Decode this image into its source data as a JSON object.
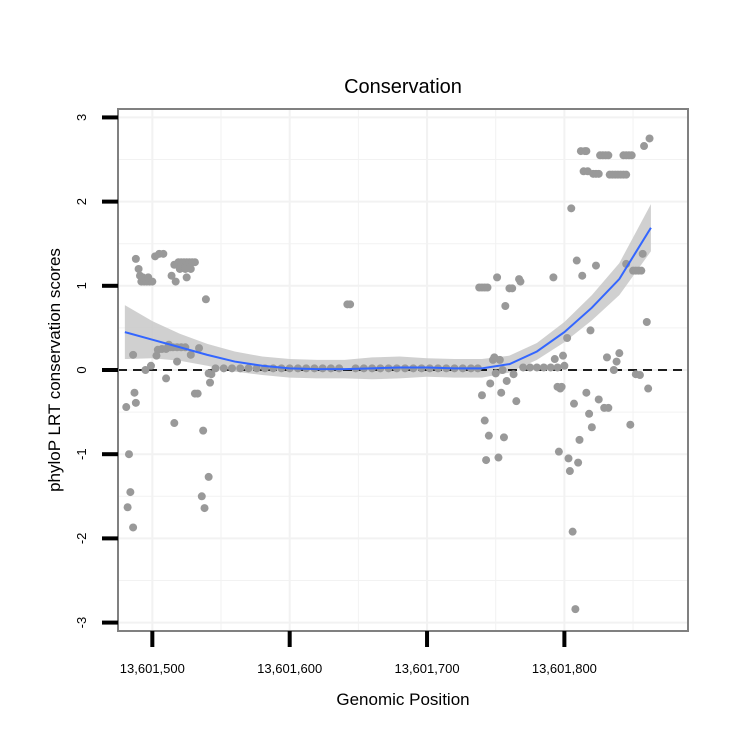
{
  "chart_data": {
    "type": "scatter",
    "title": "Conservation",
    "xlabel": "Genomic Position",
    "ylabel": "phyloP LRT conservation scores",
    "xlim": [
      13601475,
      13601890
    ],
    "ylim": [
      -3.1,
      3.1
    ],
    "x_ticks": [
      13601500,
      13601600,
      13601700,
      13601800
    ],
    "x_tick_labels": [
      "13,601,500",
      "13,601,600",
      "13,601,700",
      "13,601,800"
    ],
    "y_ticks": [
      3,
      2,
      1,
      0,
      -1,
      -2,
      -3
    ],
    "y_tick_labels": [
      "3",
      "2",
      "1",
      "0",
      "-1",
      "-2",
      "-3"
    ],
    "reference_line": {
      "y": 0,
      "style": "dashed"
    },
    "grid": true,
    "colors": {
      "points": "#999999",
      "smooth": "#3366ff",
      "ribbon": "#c8c8c8",
      "frame": "#808080"
    },
    "points": [
      {
        "x": 13601481,
        "y": -0.44
      },
      {
        "x": 13601483,
        "y": -1.0
      },
      {
        "x": 13601482,
        "y": -1.63
      },
      {
        "x": 13601484,
        "y": -1.45
      },
      {
        "x": 13601486,
        "y": -1.87
      },
      {
        "x": 13601487,
        "y": -0.27
      },
      {
        "x": 13601488,
        "y": -0.39
      },
      {
        "x": 13601486,
        "y": 0.18
      },
      {
        "x": 13601488,
        "y": 1.32
      },
      {
        "x": 13601490,
        "y": 1.2
      },
      {
        "x": 13601491,
        "y": 1.12
      },
      {
        "x": 13601492,
        "y": 1.05
      },
      {
        "x": 13601494,
        "y": 1.05
      },
      {
        "x": 13601496,
        "y": 1.05
      },
      {
        "x": 13601498,
        "y": 1.05
      },
      {
        "x": 13601500,
        "y": 1.05
      },
      {
        "x": 13601493,
        "y": 1.1
      },
      {
        "x": 13601497,
        "y": 1.1
      },
      {
        "x": 13601495,
        "y": 0.0
      },
      {
        "x": 13601499,
        "y": 0.05
      },
      {
        "x": 13601503,
        "y": 0.17
      },
      {
        "x": 13601502,
        "y": 1.35
      },
      {
        "x": 13601505,
        "y": 1.38
      },
      {
        "x": 13601508,
        "y": 1.38
      },
      {
        "x": 13601504,
        "y": 0.24
      },
      {
        "x": 13601507,
        "y": 0.25
      },
      {
        "x": 13601510,
        "y": 0.25
      },
      {
        "x": 13601510,
        "y": -0.1
      },
      {
        "x": 13601512,
        "y": 0.3
      },
      {
        "x": 13601513,
        "y": 0.27
      },
      {
        "x": 13601515,
        "y": 0.27
      },
      {
        "x": 13601514,
        "y": 1.12
      },
      {
        "x": 13601517,
        "y": 1.05
      },
      {
        "x": 13601516,
        "y": 1.25
      },
      {
        "x": 13601519,
        "y": 1.28
      },
      {
        "x": 13601521,
        "y": 1.28
      },
      {
        "x": 13601523,
        "y": 1.28
      },
      {
        "x": 13601525,
        "y": 1.28
      },
      {
        "x": 13601527,
        "y": 1.28
      },
      {
        "x": 13601529,
        "y": 1.28
      },
      {
        "x": 13601531,
        "y": 1.28
      },
      {
        "x": 13601520,
        "y": 1.2
      },
      {
        "x": 13601524,
        "y": 1.2
      },
      {
        "x": 13601528,
        "y": 1.2
      },
      {
        "x": 13601525,
        "y": 1.1
      },
      {
        "x": 13601518,
        "y": 0.27
      },
      {
        "x": 13601521,
        "y": 0.27
      },
      {
        "x": 13601524,
        "y": 0.27
      },
      {
        "x": 13601516,
        "y": -0.63
      },
      {
        "x": 13601518,
        "y": 0.1
      },
      {
        "x": 13601528,
        "y": 0.18
      },
      {
        "x": 13601531,
        "y": -0.28
      },
      {
        "x": 13601533,
        "y": -0.28
      },
      {
        "x": 13601534,
        "y": 0.26
      },
      {
        "x": 13601536,
        "y": -1.5
      },
      {
        "x": 13601537,
        "y": -0.72
      },
      {
        "x": 13601538,
        "y": -1.64
      },
      {
        "x": 13601539,
        "y": 0.84
      },
      {
        "x": 13601541,
        "y": -1.27
      },
      {
        "x": 13601542,
        "y": -0.15
      },
      {
        "x": 13601543,
        "y": -0.05
      },
      {
        "x": 13601541,
        "y": -0.04
      },
      {
        "x": 13601546,
        "y": 0.02
      },
      {
        "x": 13601552,
        "y": 0.02
      },
      {
        "x": 13601558,
        "y": 0.02
      },
      {
        "x": 13601564,
        "y": 0.02
      },
      {
        "x": 13601570,
        "y": 0.02
      },
      {
        "x": 13601576,
        "y": 0.02
      },
      {
        "x": 13601582,
        "y": 0.02
      },
      {
        "x": 13601588,
        "y": 0.02
      },
      {
        "x": 13601594,
        "y": 0.02
      },
      {
        "x": 13601600,
        "y": 0.02
      },
      {
        "x": 13601606,
        "y": 0.02
      },
      {
        "x": 13601612,
        "y": 0.02
      },
      {
        "x": 13601618,
        "y": 0.02
      },
      {
        "x": 13601624,
        "y": 0.02
      },
      {
        "x": 13601630,
        "y": 0.02
      },
      {
        "x": 13601636,
        "y": 0.02
      },
      {
        "x": 13601642,
        "y": 0.78
      },
      {
        "x": 13601644,
        "y": 0.78
      },
      {
        "x": 13601648,
        "y": 0.02
      },
      {
        "x": 13601654,
        "y": 0.02
      },
      {
        "x": 13601660,
        "y": 0.02
      },
      {
        "x": 13601666,
        "y": 0.02
      },
      {
        "x": 13601672,
        "y": 0.02
      },
      {
        "x": 13601678,
        "y": 0.02
      },
      {
        "x": 13601684,
        "y": 0.02
      },
      {
        "x": 13601690,
        "y": 0.02
      },
      {
        "x": 13601696,
        "y": 0.02
      },
      {
        "x": 13601702,
        "y": 0.02
      },
      {
        "x": 13601708,
        "y": 0.02
      },
      {
        "x": 13601714,
        "y": 0.02
      },
      {
        "x": 13601720,
        "y": 0.02
      },
      {
        "x": 13601726,
        "y": 0.02
      },
      {
        "x": 13601732,
        "y": 0.02
      },
      {
        "x": 13601737,
        "y": 0.02
      },
      {
        "x": 13601738,
        "y": 0.98
      },
      {
        "x": 13601740,
        "y": 0.98
      },
      {
        "x": 13601742,
        "y": 0.98
      },
      {
        "x": 13601744,
        "y": 0.98
      },
      {
        "x": 13601740,
        "y": -0.3
      },
      {
        "x": 13601742,
        "y": -0.6
      },
      {
        "x": 13601743,
        "y": -1.07
      },
      {
        "x": 13601745,
        "y": -0.78
      },
      {
        "x": 13601746,
        "y": -0.16
      },
      {
        "x": 13601748,
        "y": 0.12
      },
      {
        "x": 13601749,
        "y": 0.15
      },
      {
        "x": 13601750,
        "y": -0.04
      },
      {
        "x": 13601751,
        "y": 1.1
      },
      {
        "x": 13601752,
        "y": -1.04
      },
      {
        "x": 13601753,
        "y": 0.12
      },
      {
        "x": 13601754,
        "y": -0.27
      },
      {
        "x": 13601755,
        "y": 0.0
      },
      {
        "x": 13601756,
        "y": -0.8
      },
      {
        "x": 13601757,
        "y": 0.76
      },
      {
        "x": 13601758,
        "y": -0.13
      },
      {
        "x": 13601760,
        "y": 0.97
      },
      {
        "x": 13601762,
        "y": 0.97
      },
      {
        "x": 13601763,
        "y": -0.05
      },
      {
        "x": 13601765,
        "y": -0.37
      },
      {
        "x": 13601767,
        "y": 1.08
      },
      {
        "x": 13601768,
        "y": 1.05
      },
      {
        "x": 13601770,
        "y": 0.03
      },
      {
        "x": 13601775,
        "y": 0.03
      },
      {
        "x": 13601780,
        "y": 0.03
      },
      {
        "x": 13601785,
        "y": 0.03
      },
      {
        "x": 13601790,
        "y": 0.03
      },
      {
        "x": 13601795,
        "y": 0.03
      },
      {
        "x": 13601792,
        "y": 1.1
      },
      {
        "x": 13601793,
        "y": 0.13
      },
      {
        "x": 13601795,
        "y": -0.2
      },
      {
        "x": 13601796,
        "y": -0.97
      },
      {
        "x": 13601797,
        "y": -0.22
      },
      {
        "x": 13601798,
        "y": -0.2
      },
      {
        "x": 13601799,
        "y": 0.17
      },
      {
        "x": 13601800,
        "y": 0.05
      },
      {
        "x": 13601802,
        "y": 0.38
      },
      {
        "x": 13601803,
        "y": -1.05
      },
      {
        "x": 13601804,
        "y": -1.2
      },
      {
        "x": 13601805,
        "y": 1.92
      },
      {
        "x": 13601806,
        "y": -1.92
      },
      {
        "x": 13601807,
        "y": -0.4
      },
      {
        "x": 13601808,
        "y": -2.84
      },
      {
        "x": 13601809,
        "y": 1.3
      },
      {
        "x": 13601810,
        "y": -1.1
      },
      {
        "x": 13601811,
        "y": -0.83
      },
      {
        "x": 13601812,
        "y": 2.6
      },
      {
        "x": 13601813,
        "y": 1.12
      },
      {
        "x": 13601814,
        "y": 2.36
      },
      {
        "x": 13601815,
        "y": 2.6
      },
      {
        "x": 13601816,
        "y": 2.6
      },
      {
        "x": 13601817,
        "y": 2.36
      },
      {
        "x": 13601816,
        "y": -0.27
      },
      {
        "x": 13601818,
        "y": -0.52
      },
      {
        "x": 13601819,
        "y": 0.47
      },
      {
        "x": 13601820,
        "y": -0.68
      },
      {
        "x": 13601821,
        "y": 2.33
      },
      {
        "x": 13601823,
        "y": 2.33
      },
      {
        "x": 13601825,
        "y": 2.33
      },
      {
        "x": 13601823,
        "y": 1.24
      },
      {
        "x": 13601825,
        "y": -0.35
      },
      {
        "x": 13601826,
        "y": 2.55
      },
      {
        "x": 13601828,
        "y": 2.55
      },
      {
        "x": 13601830,
        "y": 2.55
      },
      {
        "x": 13601832,
        "y": 2.55
      },
      {
        "x": 13601829,
        "y": -0.45
      },
      {
        "x": 13601831,
        "y": 0.15
      },
      {
        "x": 13601832,
        "y": -0.45
      },
      {
        "x": 13601833,
        "y": 2.32
      },
      {
        "x": 13601835,
        "y": 2.32
      },
      {
        "x": 13601837,
        "y": 2.32
      },
      {
        "x": 13601839,
        "y": 2.32
      },
      {
        "x": 13601841,
        "y": 2.32
      },
      {
        "x": 13601843,
        "y": 2.32
      },
      {
        "x": 13601845,
        "y": 2.32
      },
      {
        "x": 13601836,
        "y": 0.0
      },
      {
        "x": 13601838,
        "y": 0.1
      },
      {
        "x": 13601840,
        "y": 0.2
      },
      {
        "x": 13601843,
        "y": 2.55
      },
      {
        "x": 13601845,
        "y": 2.55
      },
      {
        "x": 13601847,
        "y": 2.55
      },
      {
        "x": 13601849,
        "y": 2.55
      },
      {
        "x": 13601845,
        "y": 1.26
      },
      {
        "x": 13601848,
        "y": -0.65
      },
      {
        "x": 13601850,
        "y": 1.18
      },
      {
        "x": 13601852,
        "y": 1.18
      },
      {
        "x": 13601854,
        "y": 1.18
      },
      {
        "x": 13601856,
        "y": 1.18
      },
      {
        "x": 13601852,
        "y": -0.05
      },
      {
        "x": 13601855,
        "y": -0.06
      },
      {
        "x": 13601858,
        "y": 2.66
      },
      {
        "x": 13601857,
        "y": 1.38
      },
      {
        "x": 13601860,
        "y": 0.57
      },
      {
        "x": 13601861,
        "y": -0.22
      },
      {
        "x": 13601862,
        "y": 2.75
      }
    ],
    "smooth_line": [
      {
        "x": 13601480,
        "y": 0.45
      },
      {
        "x": 13601500,
        "y": 0.36
      },
      {
        "x": 13601520,
        "y": 0.27
      },
      {
        "x": 13601540,
        "y": 0.18
      },
      {
        "x": 13601560,
        "y": 0.1
      },
      {
        "x": 13601580,
        "y": 0.05
      },
      {
        "x": 13601600,
        "y": 0.02
      },
      {
        "x": 13601620,
        "y": 0.01
      },
      {
        "x": 13601640,
        "y": 0.01
      },
      {
        "x": 13601660,
        "y": 0.02
      },
      {
        "x": 13601680,
        "y": 0.03
      },
      {
        "x": 13601700,
        "y": 0.03
      },
      {
        "x": 13601720,
        "y": 0.02
      },
      {
        "x": 13601740,
        "y": 0.02
      },
      {
        "x": 13601760,
        "y": 0.07
      },
      {
        "x": 13601780,
        "y": 0.22
      },
      {
        "x": 13601800,
        "y": 0.45
      },
      {
        "x": 13601820,
        "y": 0.74
      },
      {
        "x": 13601840,
        "y": 1.08
      },
      {
        "x": 13601863,
        "y": 1.69
      }
    ],
    "ribbon_halfwidth": [
      {
        "x": 13601480,
        "y": 0.32
      },
      {
        "x": 13601500,
        "y": 0.22
      },
      {
        "x": 13601520,
        "y": 0.16
      },
      {
        "x": 13601540,
        "y": 0.13
      },
      {
        "x": 13601560,
        "y": 0.12
      },
      {
        "x": 13601580,
        "y": 0.11
      },
      {
        "x": 13601600,
        "y": 0.11
      },
      {
        "x": 13601620,
        "y": 0.11
      },
      {
        "x": 13601640,
        "y": 0.11
      },
      {
        "x": 13601660,
        "y": 0.13
      },
      {
        "x": 13601680,
        "y": 0.13
      },
      {
        "x": 13601700,
        "y": 0.11
      },
      {
        "x": 13601720,
        "y": 0.11
      },
      {
        "x": 13601740,
        "y": 0.11
      },
      {
        "x": 13601760,
        "y": 0.1
      },
      {
        "x": 13601780,
        "y": 0.1
      },
      {
        "x": 13601800,
        "y": 0.12
      },
      {
        "x": 13601820,
        "y": 0.15
      },
      {
        "x": 13601840,
        "y": 0.19
      },
      {
        "x": 13601863,
        "y": 0.28
      }
    ]
  }
}
